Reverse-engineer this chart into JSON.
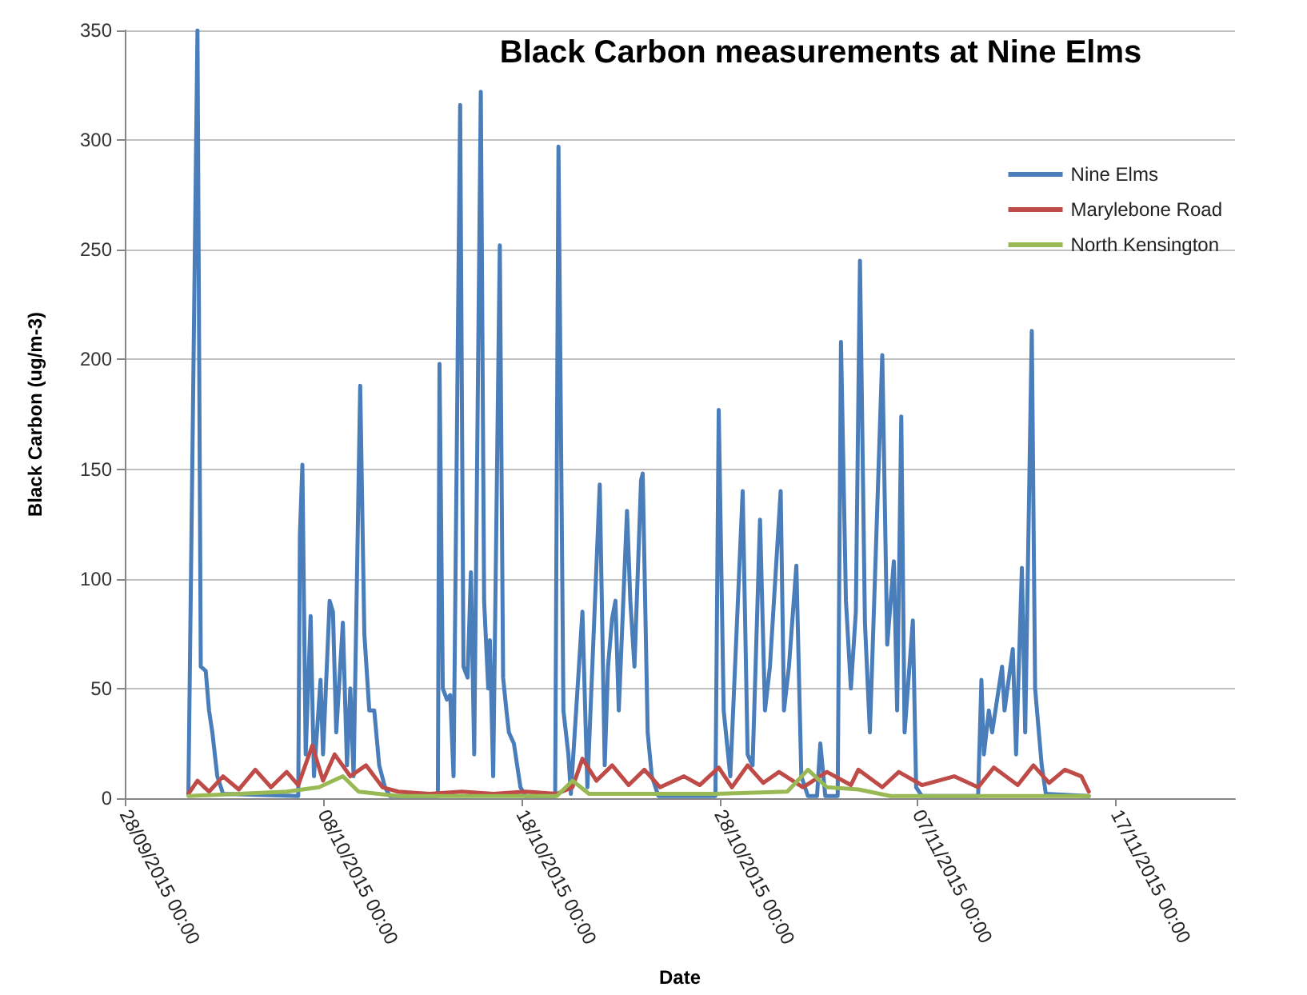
{
  "chart_data": {
    "type": "line",
    "title": "Black Carbon measurements at Nine Elms",
    "xlabel": "Date",
    "ylabel": "Black Carbon (ug/m-3)",
    "xlim": [
      "2015-09-28",
      "2015-11-23"
    ],
    "xticks": [
      {
        "value": "2015-09-28",
        "label": "28/09/2015 00:00"
      },
      {
        "value": "2015-10-08",
        "label": "08/10/2015 00:00"
      },
      {
        "value": "2015-10-18",
        "label": "18/10/2015 00:00"
      },
      {
        "value": "2015-10-28",
        "label": "28/10/2015 00:00"
      },
      {
        "value": "2015-11-07",
        "label": "07/11/2015 00:00"
      },
      {
        "value": "2015-11-17",
        "label": "17/11/2015 00:00"
      }
    ],
    "ylim": [
      0,
      350
    ],
    "yticks": [
      0,
      50,
      100,
      150,
      200,
      250,
      300,
      350
    ],
    "grid": "y",
    "legend": "top right",
    "marker": "none",
    "line_style": "solid",
    "series": [
      {
        "name": "Nine Elms",
        "color": "#4a7ebb",
        "x": [
          "2015-10-01T05:00",
          "2015-10-01T16:00",
          "2015-10-01T20:00",
          "2015-10-02T02:00",
          "2015-10-02T06:00",
          "2015-10-02T10:00",
          "2015-10-02T16:00",
          "2015-10-02T23:00",
          "2015-10-06T18:00",
          "2015-10-06T20:00",
          "2015-10-06T23:00",
          "2015-10-07T03:00",
          "2015-10-07T09:00",
          "2015-10-07T13:00",
          "2015-10-07T21:00",
          "2015-10-08T00:00",
          "2015-10-08T08:00",
          "2015-10-08T12:00",
          "2015-10-08T16:00",
          "2015-10-09T00:00",
          "2015-10-09T05:00",
          "2015-10-09T09:00",
          "2015-10-09T13:00",
          "2015-10-09T21:00",
          "2015-10-10T02:00",
          "2015-10-10T08:00",
          "2015-10-10T14:00",
          "2015-10-10T20:00",
          "2015-10-11T03:00",
          "2015-10-11T09:00",
          "2015-10-13T19:00",
          "2015-10-13T21:00",
          "2015-10-14T01:00",
          "2015-10-14T06:00",
          "2015-10-14T10:00",
          "2015-10-14T14:00",
          "2015-10-14T22:00",
          "2015-10-15T02:00",
          "2015-10-15T07:00",
          "2015-10-15T11:00",
          "2015-10-15T15:00",
          "2015-10-15T23:00",
          "2015-10-16T03:00",
          "2015-10-16T08:00",
          "2015-10-16T10:00",
          "2015-10-16T14:00",
          "2015-10-16T22:00",
          "2015-10-17T02:00",
          "2015-10-17T06:00",
          "2015-10-17T09:00",
          "2015-10-17T15:00",
          "2015-10-17T23:00",
          "2015-10-18T05:00",
          "2015-10-19T17:00",
          "2015-10-19T21:00",
          "2015-10-20T03:00",
          "2015-10-20T09:00",
          "2015-10-20T12:00",
          "2015-10-21T02:00",
          "2015-10-21T08:00",
          "2015-10-21T23:00",
          "2015-10-22T05:00",
          "2015-10-22T09:00",
          "2015-10-22T14:00",
          "2015-10-22T18:00",
          "2015-10-22T22:00",
          "2015-10-23T08:00",
          "2015-10-23T12:00",
          "2015-10-23T17:00",
          "2015-10-24T01:00",
          "2015-10-24T03:00",
          "2015-10-24T09:00",
          "2015-10-24T14:00",
          "2015-10-24T22:00",
          "2015-10-27T19:00",
          "2015-10-27T23:00",
          "2015-10-28T05:00",
          "2015-10-28T13:00",
          "2015-10-29T04:00",
          "2015-10-29T10:00",
          "2015-10-29T16:00",
          "2015-10-30T01:00",
          "2015-10-30T07:00",
          "2015-10-30T13:00",
          "2015-10-31T02:00",
          "2015-10-31T06:00",
          "2015-10-31T12:00",
          "2015-10-31T21:00",
          "2015-11-01T03:00",
          "2015-11-01T11:00",
          "2015-11-01T22:00",
          "2015-11-02T02:00",
          "2015-11-02T08:00",
          "2015-11-02T23:00",
          "2015-11-03T03:00",
          "2015-11-03T09:00",
          "2015-11-03T15:00",
          "2015-11-03T21:00",
          "2015-11-04T02:00",
          "2015-11-04T08:00",
          "2015-11-04T14:00",
          "2015-11-05T05:00",
          "2015-11-05T11:00",
          "2015-11-05T19:00",
          "2015-11-05T23:00",
          "2015-11-06T04:00",
          "2015-11-06T08:00",
          "2015-11-06T18:00",
          "2015-11-06T22:00",
          "2015-11-07T05:00",
          "2015-11-10T01:00",
          "2015-11-10T05:00",
          "2015-11-10T08:00",
          "2015-11-10T14:00",
          "2015-11-10T18:00",
          "2015-11-11T06:00",
          "2015-11-11T09:00",
          "2015-11-11T19:00",
          "2015-11-11T23:00",
          "2015-11-12T06:00",
          "2015-11-12T10:00",
          "2015-11-12T18:00",
          "2015-11-12T22:00",
          "2015-11-13T06:00",
          "2015-11-13T11:00",
          "2015-11-15T15:00"
        ],
        "values": [
          2,
          350,
          60,
          58,
          40,
          30,
          10,
          2,
          1,
          120,
          152,
          20,
          83,
          10,
          54,
          20,
          90,
          85,
          30,
          80,
          15,
          50,
          10,
          188,
          75,
          40,
          40,
          15,
          5,
          1,
          1,
          198,
          50,
          45,
          47,
          10,
          316,
          60,
          55,
          103,
          20,
          322,
          90,
          50,
          72,
          10,
          252,
          55,
          40,
          30,
          25,
          5,
          1,
          1,
          297,
          40,
          20,
          2,
          85,
          5,
          143,
          15,
          60,
          82,
          90,
          40,
          131,
          90,
          60,
          145,
          148,
          30,
          10,
          1,
          1,
          177,
          40,
          10,
          140,
          20,
          15,
          127,
          40,
          60,
          140,
          40,
          60,
          106,
          10,
          1,
          1,
          25,
          1,
          1,
          208,
          90,
          50,
          85,
          245,
          80,
          30,
          202,
          70,
          108,
          40,
          174,
          30,
          81,
          5,
          1,
          1,
          54,
          20,
          40,
          30,
          60,
          40,
          68,
          20,
          105,
          30,
          213,
          50,
          15,
          2,
          1
        ]
      },
      {
        "name": "Marylebone Road",
        "color": "#be4b48",
        "x": [
          "2015-10-01T05:00",
          "2015-10-01T16:00",
          "2015-10-02T06:00",
          "2015-10-02T23:00",
          "2015-10-03T18:00",
          "2015-10-04T14:00",
          "2015-10-05T09:00",
          "2015-10-06T04:00",
          "2015-10-06T18:00",
          "2015-10-07T11:00",
          "2015-10-08T00:00",
          "2015-10-08T14:00",
          "2015-10-09T09:00",
          "2015-10-10T04:00",
          "2015-10-11T00:00",
          "2015-10-11T19:00",
          "2015-10-13T09:00",
          "2015-10-15T00:00",
          "2015-10-16T14:00",
          "2015-10-18T05:00",
          "2015-10-19T19:00",
          "2015-10-20T14:00",
          "2015-10-21T02:00",
          "2015-10-21T19:00",
          "2015-10-22T14:00",
          "2015-10-23T10:00",
          "2015-10-24T05:00",
          "2015-10-25T00:00",
          "2015-10-26T05:00",
          "2015-10-27T00:00",
          "2015-10-27T23:00",
          "2015-10-28T15:00",
          "2015-10-29T10:00",
          "2015-10-30T05:00",
          "2015-10-31T00:00",
          "2015-11-01T05:00",
          "2015-11-02T10:00",
          "2015-11-03T15:00",
          "2015-11-04T00:00",
          "2015-11-05T05:00",
          "2015-11-06T01:00",
          "2015-11-07T05:00",
          "2015-11-08T20:00",
          "2015-11-10T01:00",
          "2015-11-10T20:00",
          "2015-11-12T01:00",
          "2015-11-12T20:00",
          "2015-11-13T15:00",
          "2015-11-14T10:00",
          "2015-11-15T06:00",
          "2015-11-15T15:00"
        ],
        "values": [
          2,
          8,
          3,
          10,
          4,
          13,
          5,
          12,
          6,
          24,
          8,
          20,
          10,
          15,
          5,
          3,
          2,
          3,
          2,
          3,
          2,
          5,
          18,
          8,
          15,
          6,
          13,
          5,
          10,
          6,
          14,
          5,
          15,
          7,
          12,
          5,
          12,
          6,
          13,
          5,
          12,
          6,
          10,
          5,
          14,
          6,
          15,
          7,
          13,
          10,
          3
        ]
      },
      {
        "name": "North Kensington",
        "color": "#98b954",
        "x": [
          "2015-10-01T05:00",
          "2015-10-03T18:00",
          "2015-10-06T04:00",
          "2015-10-07T19:00",
          "2015-10-09T00:00",
          "2015-10-09T19:00",
          "2015-10-11T19:00",
          "2015-10-15T19:00",
          "2015-10-19T19:00",
          "2015-10-20T14:00",
          "2015-10-21T10:00",
          "2015-10-27T19:00",
          "2015-10-31T10:00",
          "2015-11-01T11:00",
          "2015-11-02T10:00",
          "2015-11-04T00:00",
          "2015-11-05T15:00",
          "2015-11-08T20:00",
          "2015-11-15T15:00"
        ],
        "values": [
          1,
          2,
          3,
          5,
          10,
          3,
          1,
          1,
          1,
          8,
          2,
          2,
          3,
          13,
          5,
          4,
          1,
          1,
          1
        ]
      }
    ]
  }
}
